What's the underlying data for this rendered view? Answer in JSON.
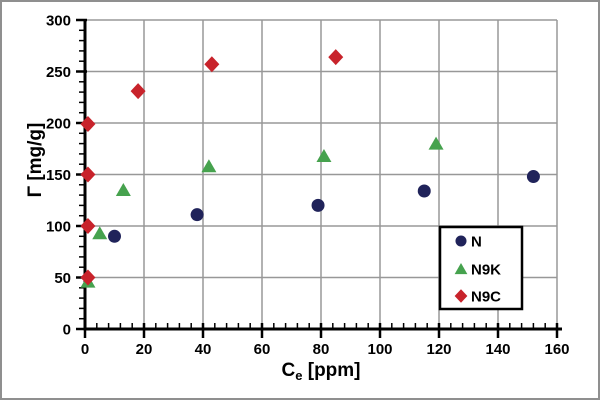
{
  "chart_data": {
    "type": "scatter",
    "title": "",
    "x_axis": {
      "label": "Ce [ppm]",
      "label_base": "C",
      "label_sub": "e",
      "label_unit": "[ppm]",
      "min": 0,
      "max": 160,
      "major_tick_step": 20,
      "minor_tick_step": 4,
      "tick_labels": [
        "0",
        "20",
        "40",
        "60",
        "80",
        "100",
        "120",
        "140",
        "160"
      ]
    },
    "y_axis": {
      "label": "Γ [mg/g]",
      "min": 0,
      "max": 300,
      "major_tick_step": 50,
      "minor_tick_step": 10,
      "tick_labels": [
        "0",
        "50",
        "100",
        "150",
        "200",
        "250",
        "300"
      ]
    },
    "grid": true,
    "legend_position": "bottom-right",
    "series": [
      {
        "name": "N",
        "marker": "circle",
        "color": "#20235a",
        "points": [
          [
            10,
            90
          ],
          [
            38,
            111
          ],
          [
            79,
            120
          ],
          [
            115,
            134
          ],
          [
            152,
            148
          ]
        ]
      },
      {
        "name": "N9K",
        "marker": "triangle",
        "color": "#46a24e",
        "points": [
          [
            1,
            46
          ],
          [
            5,
            93
          ],
          [
            13,
            135
          ],
          [
            42,
            158
          ],
          [
            81,
            168
          ],
          [
            119,
            180
          ]
        ]
      },
      {
        "name": "N9C",
        "marker": "diamond",
        "color": "#c8232b",
        "points": [
          [
            1,
            50
          ],
          [
            1,
            100
          ],
          [
            1,
            150
          ],
          [
            1,
            199
          ],
          [
            18,
            231
          ],
          [
            43,
            257
          ],
          [
            85,
            264
          ]
        ]
      }
    ],
    "colors": {
      "grid": "#989898",
      "axis": "#000000",
      "text": "#000000",
      "background": "#ffffff",
      "figure_border": "#8f8f8f",
      "legend_border": "#000000",
      "legend_background": "#ffffff"
    }
  }
}
